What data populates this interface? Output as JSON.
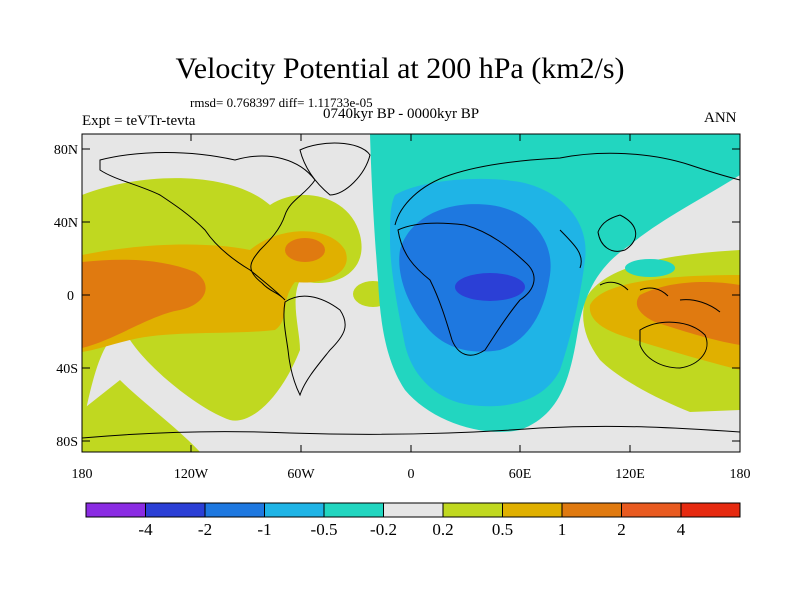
{
  "title": "Velocity Potential at 200 hPa (km2/s)",
  "stats": "rmsd= 0.768397 diff= 1.11733e-05",
  "experiment": "Expt = teVTr-tevta",
  "period": "0740kyr BP - 0000kyr BP",
  "season": "ANN",
  "lat_labels": [
    "80N",
    "40N",
    "0",
    "40S",
    "80S"
  ],
  "lon_labels": [
    "180",
    "120W",
    "60W",
    "0",
    "60E",
    "120E",
    "180"
  ],
  "colorbar": {
    "labels": [
      "-4",
      "-2",
      "-1",
      "-0.5",
      "-0.2",
      "0.2",
      "0.5",
      "1",
      "2",
      "4"
    ],
    "colors": [
      "#8a2be2",
      "#2b3fd6",
      "#1e78e0",
      "#1fb4e6",
      "#22d6c0",
      "#e6e6e6",
      "#c0d820",
      "#e0b000",
      "#e07a10",
      "#e85a20",
      "#e62a10"
    ]
  }
}
